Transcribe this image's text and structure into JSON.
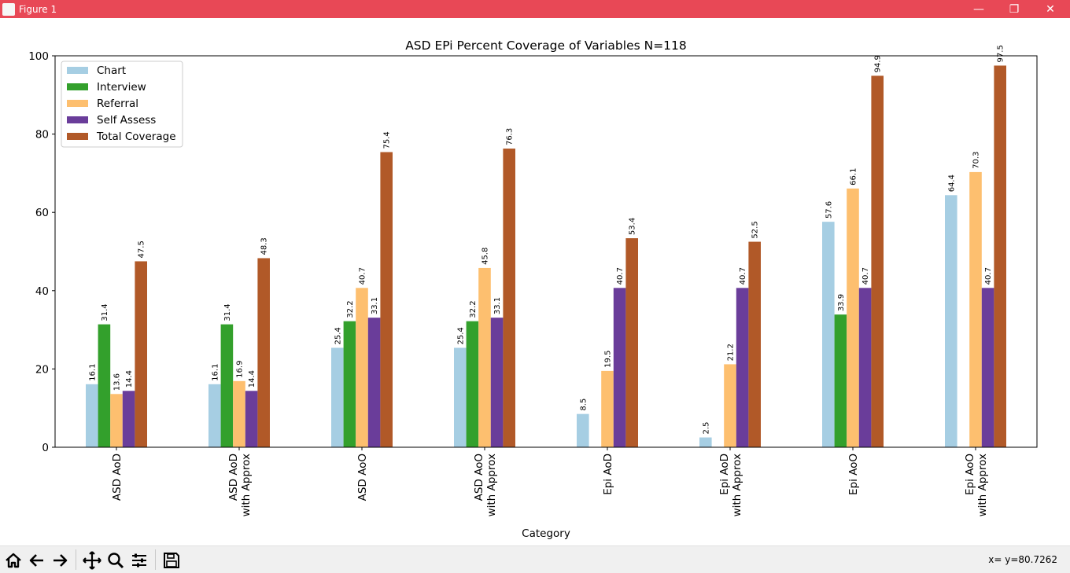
{
  "window": {
    "title": "Figure 1",
    "minimize_glyph": "—",
    "maximize_glyph": "❐",
    "close_glyph": "✕",
    "titlebar_color": "#e84856"
  },
  "toolbar": {
    "items": [
      "home-icon",
      "back-arrow-icon",
      "forward-arrow-icon",
      "pan-icon",
      "zoom-icon",
      "configure-subplots-icon",
      "save-icon"
    ],
    "coord_readout": "x= y=80.7262"
  },
  "chart_data": {
    "type": "bar",
    "title": "ASD EPi Percent Coverage of Variables N=118",
    "xlabel": "Category",
    "ylabel": "",
    "ylim": [
      0,
      100
    ],
    "yticks": [
      0,
      20,
      40,
      60,
      80,
      100
    ],
    "grid": false,
    "legend_position": "top-left",
    "categories": [
      [
        "ASD AoD"
      ],
      [
        "ASD AoD",
        "with Approx"
      ],
      [
        "ASD AoO"
      ],
      [
        "ASD AoO",
        "with Approx"
      ],
      [
        "Epi AoD"
      ],
      [
        "Epi AoD",
        "with Approx"
      ],
      [
        "Epi AoO"
      ],
      [
        "Epi AoO",
        "with Approx"
      ]
    ],
    "series": [
      {
        "name": "Chart",
        "color": "#a6cee3",
        "values": [
          16.1,
          16.1,
          25.4,
          25.4,
          8.5,
          2.5,
          57.6,
          64.4
        ]
      },
      {
        "name": "Interview",
        "color": "#33a02c",
        "values": [
          31.4,
          31.4,
          32.2,
          32.2,
          0,
          0,
          33.9,
          0
        ]
      },
      {
        "name": "Referral",
        "color": "#fdbf6f",
        "values": [
          13.6,
          16.9,
          40.7,
          45.8,
          19.5,
          21.2,
          66.1,
          70.3
        ]
      },
      {
        "name": "Self Assess",
        "color": "#6a3d9a",
        "values": [
          14.4,
          14.4,
          33.1,
          33.1,
          40.7,
          40.7,
          40.7,
          40.7
        ]
      },
      {
        "name": "Total Coverage",
        "color": "#b15928",
        "values": [
          47.5,
          48.3,
          75.4,
          76.3,
          53.4,
          52.5,
          94.9,
          97.5
        ]
      }
    ]
  }
}
